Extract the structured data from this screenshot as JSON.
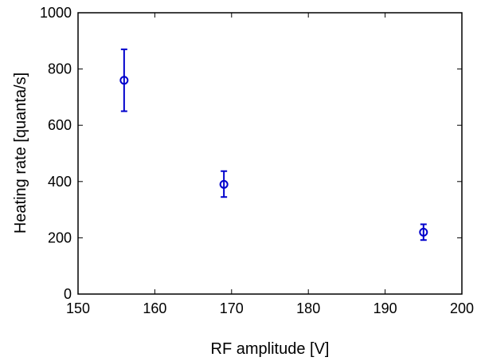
{
  "chart_data": {
    "type": "scatter",
    "title": "",
    "xlabel": "RF amplitude [V]",
    "ylabel": "Heating rate [quanta/s]",
    "xlim": [
      150,
      200
    ],
    "ylim": [
      0,
      1000
    ],
    "xticks": [
      150,
      160,
      170,
      180,
      190,
      200
    ],
    "yticks": [
      0,
      200,
      400,
      600,
      800,
      1000
    ],
    "grid": false,
    "legend": "none",
    "color": "#0000cc",
    "marker": "circle-open",
    "points": [
      {
        "x": 156,
        "y": 760,
        "err_low": 650,
        "err_high": 870
      },
      {
        "x": 169,
        "y": 390,
        "err_low": 345,
        "err_high": 437
      },
      {
        "x": 195,
        "y": 220,
        "err_low": 192,
        "err_high": 248
      }
    ]
  }
}
